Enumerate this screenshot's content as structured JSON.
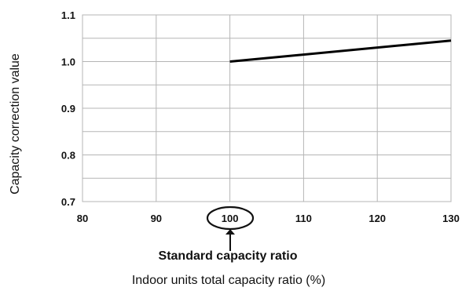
{
  "chart_data": {
    "type": "line",
    "title": "",
    "xlabel": "Indoor units total capacity ratio (%)",
    "ylabel": "Capacity correction value",
    "xlim": [
      80,
      130
    ],
    "ylim": [
      0.7,
      1.1
    ],
    "x_ticks": [
      "80",
      "90",
      "100",
      "110",
      "120",
      "130"
    ],
    "y_ticks": [
      "0.7",
      "0.8",
      "0.9",
      "1.0",
      "1.1"
    ],
    "grid": true,
    "series": [
      {
        "x": [
          100,
          130
        ],
        "y": [
          1.0,
          1.045
        ]
      }
    ],
    "annotation": {
      "text": "Standard capacity ratio",
      "highlighted_tick": "100"
    }
  }
}
